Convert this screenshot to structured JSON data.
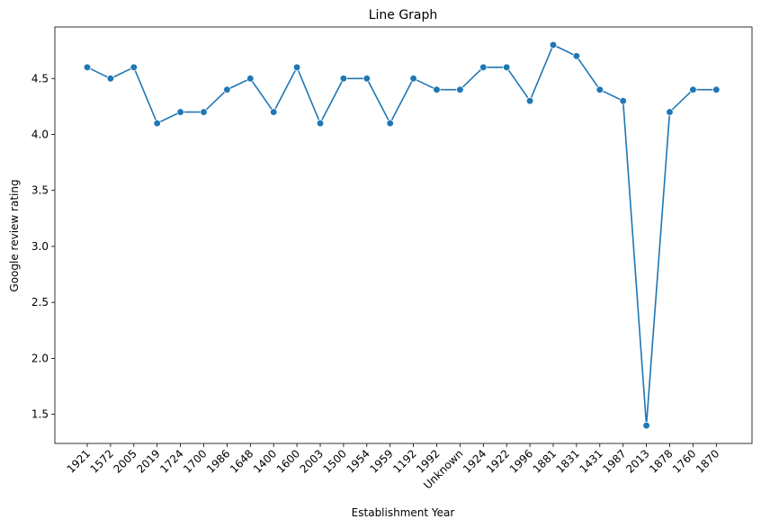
{
  "chart_data": {
    "type": "line",
    "title": "Line Graph",
    "xlabel": "Establishment Year",
    "ylabel": "Google review rating",
    "categories": [
      "1921",
      "1572",
      "2005",
      "2019",
      "1724",
      "1700",
      "1986",
      "1648",
      "1400",
      "1600",
      "2003",
      "1500",
      "1954",
      "1959",
      "1192",
      "1992",
      "Unknown",
      "1924",
      "1922",
      "1996",
      "1881",
      "1831",
      "1431",
      "1987",
      "2013",
      "1878",
      "1760",
      "1870"
    ],
    "values": [
      4.6,
      4.5,
      4.6,
      4.1,
      4.2,
      4.2,
      4.4,
      4.5,
      4.2,
      4.6,
      4.1,
      4.5,
      4.5,
      4.1,
      4.5,
      4.4,
      4.4,
      4.6,
      4.6,
      4.3,
      4.8,
      4.7,
      4.4,
      4.3,
      1.4,
      4.2,
      4.4,
      4.4
    ],
    "yticks": [
      "1.5",
      "2.0",
      "2.5",
      "3.0",
      "3.5",
      "4.0",
      "4.5"
    ],
    "ylim": [
      1.24,
      4.96
    ],
    "grid": false,
    "color": "#1f77b4",
    "marker": "circle"
  }
}
